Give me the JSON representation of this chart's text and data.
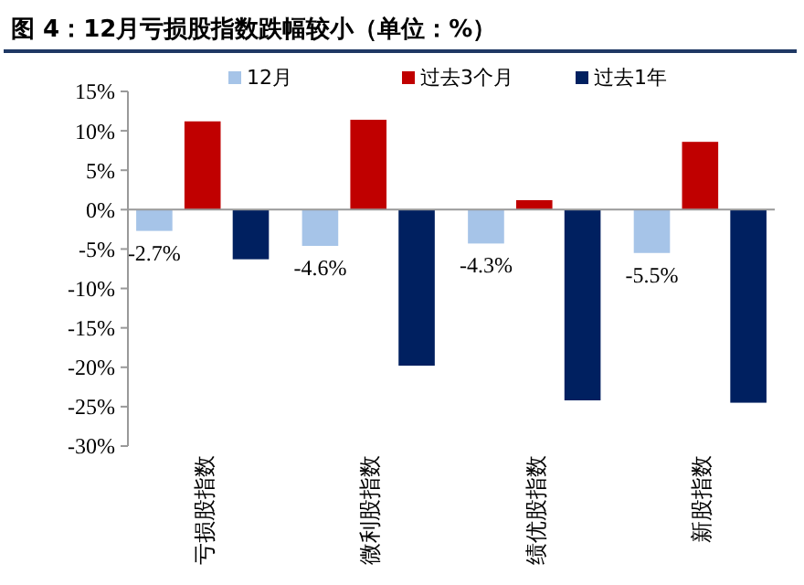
{
  "chart_data": {
    "type": "bar",
    "title": "图 4：12月亏损股指数跌幅较小（单位：%）",
    "categories": [
      "亏损股指数",
      "微利股指数",
      "绩优股指数",
      "新股指数"
    ],
    "series": [
      {
        "name": "12月",
        "color": "#a6c4e8",
        "values": [
          -2.7,
          -4.6,
          -4.3,
          -5.5
        ],
        "value_labels": [
          "-2.7%",
          "-4.6%",
          "-4.3%",
          "-5.5%"
        ]
      },
      {
        "name": "过去3个月",
        "color": "#c00000",
        "values": [
          11.2,
          11.4,
          1.2,
          8.6
        ]
      },
      {
        "name": "过去1年",
        "color": "#002060",
        "values": [
          -6.3,
          -19.8,
          -24.2,
          -24.5
        ]
      }
    ],
    "ylim": [
      -30,
      15
    ],
    "yticks": [
      {
        "value": -30,
        "label": "-30%"
      },
      {
        "value": -25,
        "label": "-25%"
      },
      {
        "value": -20,
        "label": "-20%"
      },
      {
        "value": -15,
        "label": "-15%"
      },
      {
        "value": -10,
        "label": "-10%"
      },
      {
        "value": -5,
        "label": "-5%"
      },
      {
        "value": 0,
        "label": "0%"
      },
      {
        "value": 5,
        "label": "5%"
      },
      {
        "value": 10,
        "label": "10%"
      },
      {
        "value": 15,
        "label": "15%"
      }
    ],
    "legend": "top"
  }
}
